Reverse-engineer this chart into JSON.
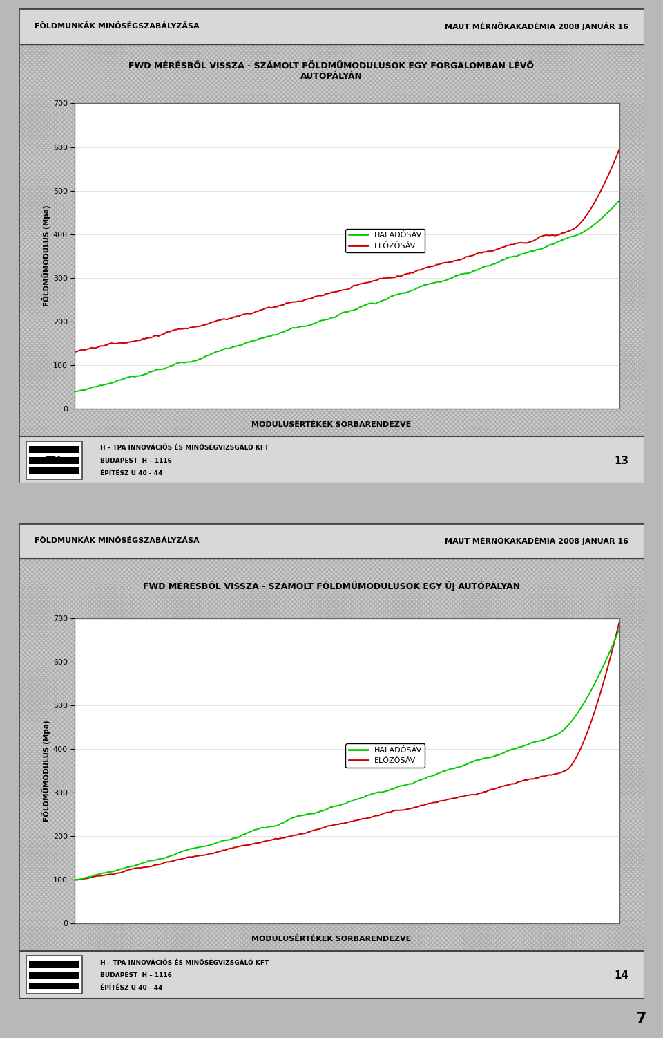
{
  "page_bg": "#b8b8b8",
  "slide_bg": "#c8c8c8",
  "chart_bg_outer": "#c8c8c8",
  "header_bg": "#d0d0d0",
  "header_left": "FÖLDMUNKÁK MINŐSÉGSZABÁLYZÁSA",
  "header_right": "MAUT MÉRNÖKAKADÉMIA 2008 JANUÁR 16",
  "footer_company": "H – TPA INNOVÁCIÓS ÉS MINŐSÉGVIZSGÁLÓ KFT",
  "footer_address": "BUDAPEST  H – 1116",
  "footer_arch": "ÉPÍTÉSZ U 40 - 44",
  "chart1_title": "FWD MÉRÉSBŐL VISSZA - SZÁMOLT FÖLDMŰMODULUSOK EGY FORGALOMBAN LÉVŐ\nAUTÓPÁLYÁN",
  "chart2_title": "FWD MÉRÉSBŐL VISSZA - SZÁMOLT FÖLDMŰMODULUSOK EGY ÚJ AUTÓPÁLYÁN",
  "xlabel": "MODULUSÉRTÉKEK SORBARENDEZVE",
  "ylabel": "FÖLDMŰMODULUS (Mpa)",
  "ylim": [
    0,
    700
  ],
  "yticks": [
    0,
    100,
    200,
    300,
    400,
    500,
    600,
    700
  ],
  "legend_haladosav": "HALADÓSÁV",
  "legend_elozosav": "ELŐZŐSÁV",
  "page_num1": "13",
  "page_num2": "14",
  "line_green": "#00cc00",
  "line_red": "#cc0000",
  "n_points": 700,
  "page_number": "7"
}
